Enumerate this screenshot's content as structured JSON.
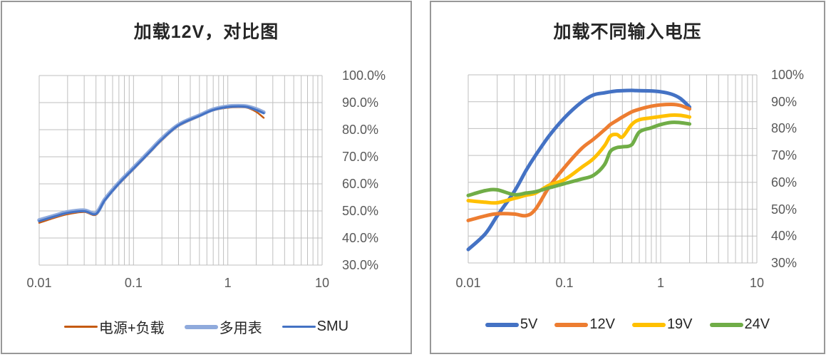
{
  "colors": {
    "grid": "#BFBFBF",
    "axis_text": "#595959",
    "title_text": "#262626",
    "legend_text": "#262626",
    "panel_border": "#989898",
    "background": "#FFFFFF"
  },
  "chart_data": [
    {
      "type": "line",
      "title": "加载12V，对比图",
      "x_scale": "log",
      "xlim": [
        0.01,
        10
      ],
      "ylim": [
        30,
        100
      ],
      "y_unit": "percent",
      "grid": true,
      "legend_position": "bottom",
      "x_tick_labels": [
        "0.01",
        "0.1",
        "1",
        "10"
      ],
      "y_tick_labels": [
        "100.0%",
        "90.0%",
        "80.0%",
        "70.0%",
        "60.0%",
        "50.0%",
        "40.0%",
        "30.0%"
      ],
      "x": [
        0.01,
        0.015,
        0.02,
        0.03,
        0.04,
        0.05,
        0.07,
        0.1,
        0.15,
        0.2,
        0.3,
        0.5,
        0.7,
        1,
        1.3,
        1.6,
        2,
        2.4
      ],
      "series": [
        {
          "name": "电源+负载",
          "color": "#C55A11",
          "width": 2.5,
          "values": [
            45.6,
            47.6,
            48.8,
            49.6,
            48.6,
            53.8,
            59.8,
            65.3,
            71.6,
            76.1,
            81.3,
            84.9,
            87.1,
            88.1,
            88.3,
            88.1,
            86.6,
            84.4
          ]
        },
        {
          "name": "多用表",
          "color": "#8FAADC",
          "width": 5.5,
          "values": [
            46.6,
            48.4,
            49.6,
            50.2,
            49.2,
            54.4,
            60.4,
            65.9,
            72.2,
            76.7,
            81.8,
            85.3,
            87.5,
            88.6,
            88.8,
            88.6,
            87.6,
            86.4
          ]
        },
        {
          "name": "SMU",
          "color": "#4472C4",
          "width": 3,
          "values": [
            46.2,
            48.1,
            49.3,
            49.9,
            48.9,
            54.1,
            60.1,
            65.6,
            71.9,
            76.4,
            81.6,
            85.1,
            87.3,
            88.4,
            88.6,
            88.4,
            87.3,
            86.1
          ]
        }
      ]
    },
    {
      "type": "line",
      "title": "加载不同输入电压",
      "x_scale": "log",
      "xlim": [
        0.01,
        10
      ],
      "ylim": [
        30,
        100
      ],
      "y_unit": "percent",
      "grid": true,
      "legend_position": "bottom",
      "x_tick_labels": [
        "0.01",
        "0.1",
        "1",
        "10"
      ],
      "y_tick_labels": [
        "100%",
        "90%",
        "80%",
        "70%",
        "60%",
        "50%",
        "40%",
        "30%"
      ],
      "x": [
        0.01,
        0.015,
        0.02,
        0.03,
        0.04,
        0.05,
        0.07,
        0.1,
        0.15,
        0.2,
        0.26,
        0.3,
        0.35,
        0.4,
        0.5,
        0.6,
        0.8,
        1,
        1.3,
        1.6,
        2
      ],
      "series": [
        {
          "name": "5V",
          "color": "#4472C4",
          "width": 5,
          "values": [
            35,
            40.8,
            47.5,
            56.5,
            64.5,
            70,
            77.5,
            84,
            89.8,
            92.5,
            93.3,
            93.7,
            94,
            94.1,
            94.2,
            94.1,
            94,
            93.7,
            92.8,
            91.2,
            88
          ]
        },
        {
          "name": "12V",
          "color": "#ED7D31",
          "width": 5,
          "values": [
            45.8,
            47.5,
            48.3,
            48.2,
            47.6,
            50,
            58.5,
            65.5,
            72.5,
            76,
            79.5,
            81.5,
            83,
            84.3,
            86.2,
            87.2,
            88.3,
            88.8,
            89,
            88.6,
            87.3
          ]
        },
        {
          "name": "19V",
          "color": "#FFC000",
          "width": 5,
          "values": [
            53.2,
            52.6,
            52.4,
            54,
            55.2,
            56,
            59,
            61,
            65.5,
            68.8,
            73.5,
            77.2,
            77.8,
            76.9,
            81.5,
            83.3,
            84,
            84.5,
            85,
            84.9,
            84.3
          ]
        },
        {
          "name": "24V",
          "color": "#70AD47",
          "width": 5,
          "values": [
            55.1,
            56.9,
            57.2,
            55.4,
            56,
            56.5,
            58,
            59.5,
            61.2,
            62.6,
            66.5,
            71.5,
            72.9,
            73.2,
            74,
            78.7,
            80.3,
            81.5,
            82.3,
            82.2,
            81.7
          ]
        }
      ]
    }
  ]
}
